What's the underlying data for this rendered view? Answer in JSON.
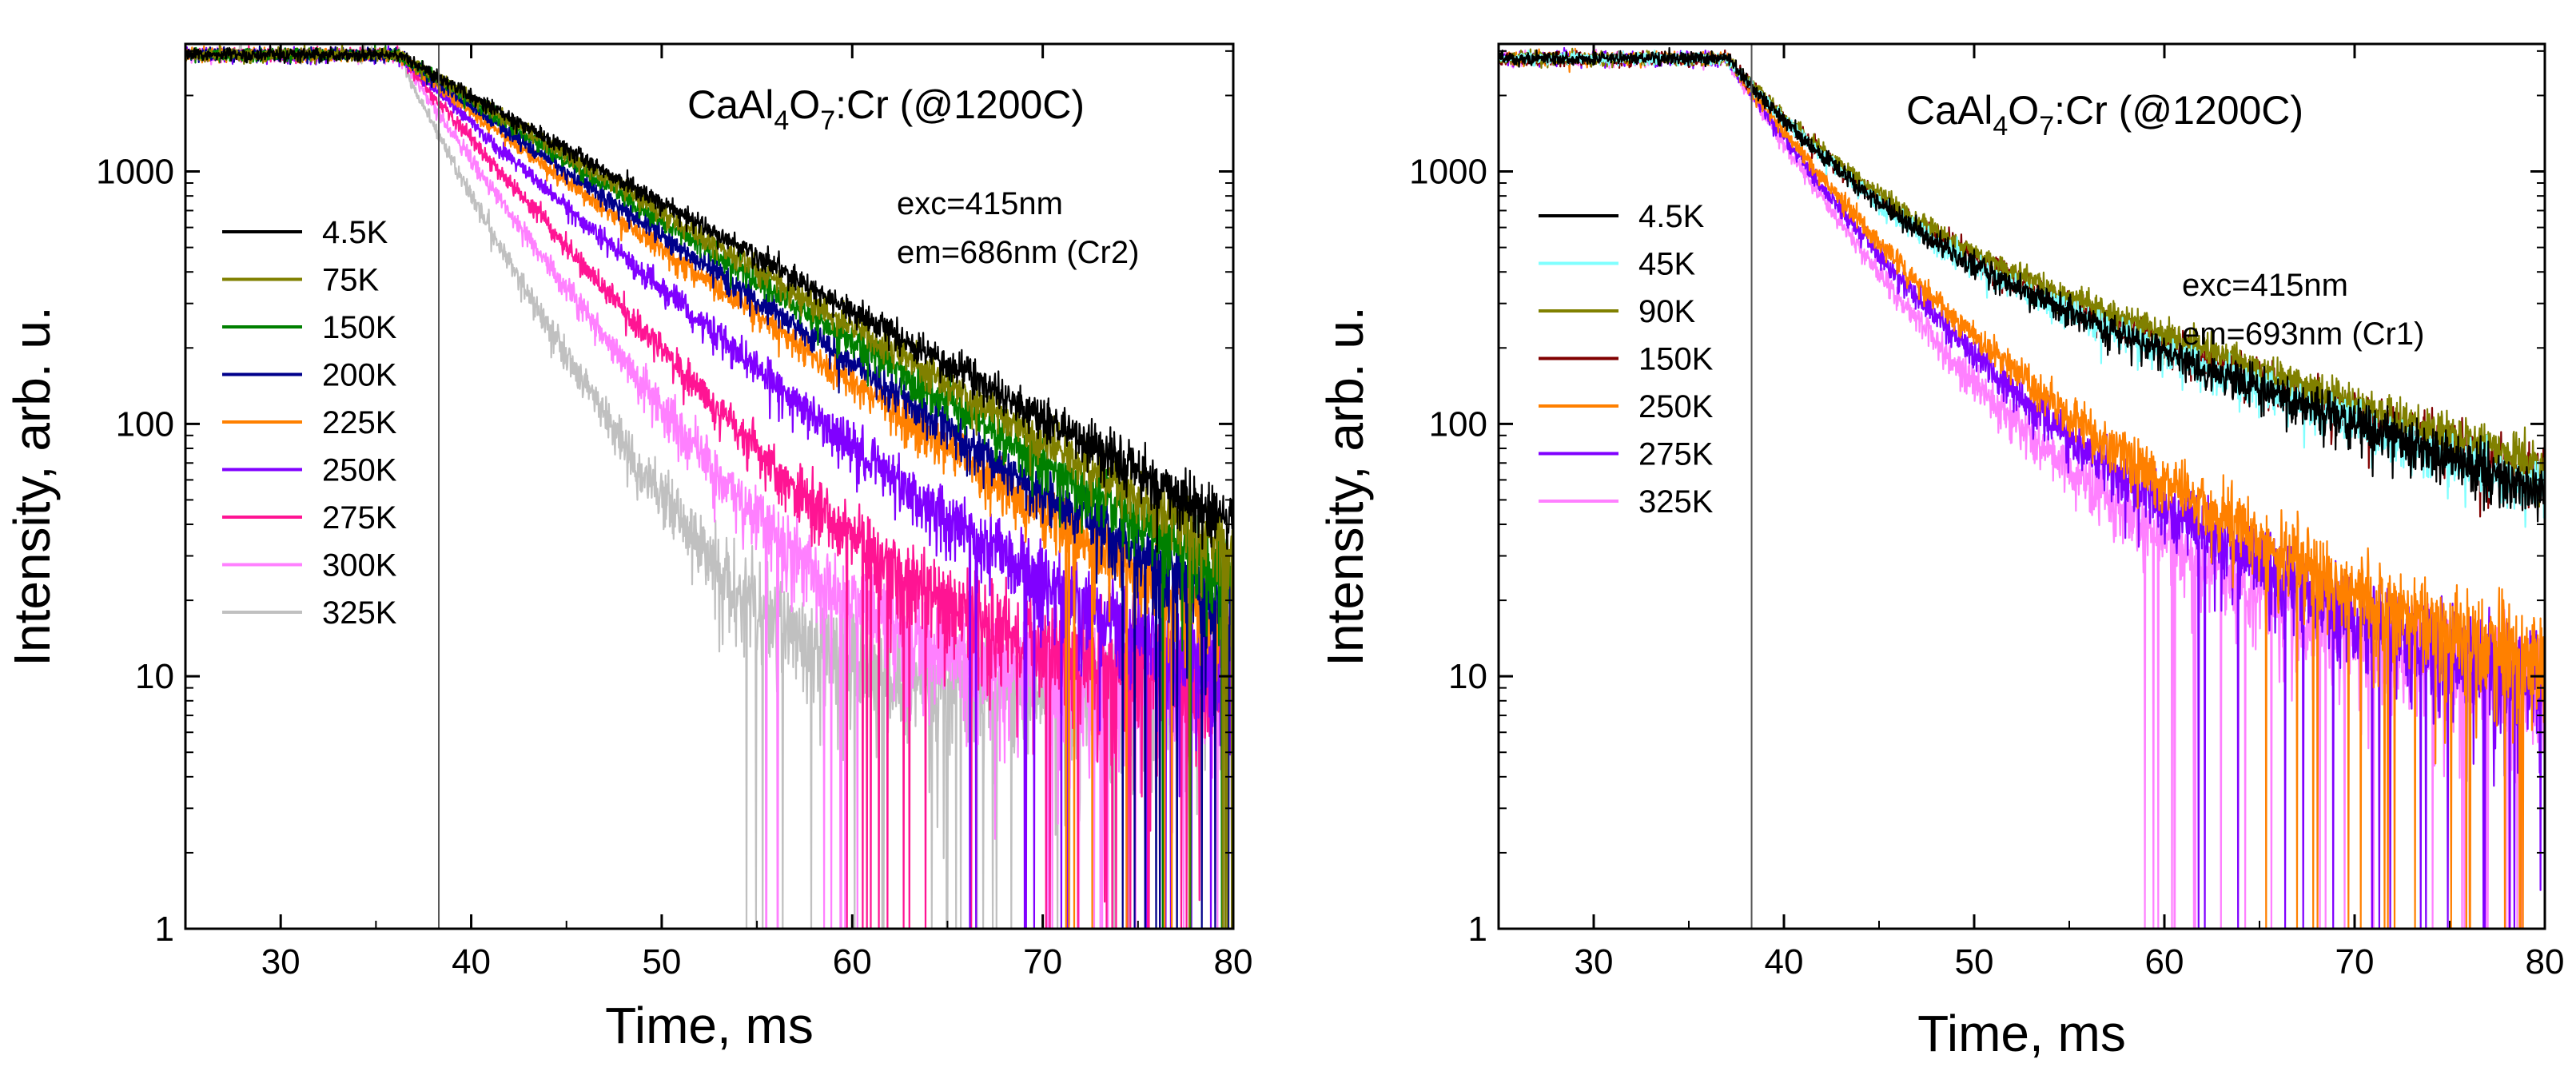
{
  "chart_data": [
    {
      "type": "line",
      "title": "CaAl4O7:Cr (@1200C)",
      "title_parts": {
        "base": "CaAl",
        "sub1": "4",
        "mid": "O",
        "sub2": "7",
        "rest": ":Cr (@1200C)"
      },
      "xlabel": "Time, ms",
      "ylabel": "Intensity, arb. u.",
      "xlim": [
        25,
        80
      ],
      "ylim": [
        1,
        3200
      ],
      "yscale": "log",
      "xticks": [
        30,
        40,
        50,
        60,
        70,
        80
      ],
      "yticks": [
        1,
        10,
        100,
        1000
      ],
      "marker_line_x": 38.3,
      "legend_position": "upper-left",
      "annotations": [
        "exc=415nm",
        "em=686nm (Cr2)"
      ],
      "series": [
        {
          "name": "4.5K",
          "color": "#000000",
          "plateau": 2900,
          "x0": 36.2,
          "tau": 10.2,
          "fast": 0.0,
          "tauf": 3.0,
          "floor": 0
        },
        {
          "name": "75K",
          "color": "#808000",
          "plateau": 2900,
          "x0": 36.2,
          "tau": 9.6,
          "fast": 0.0,
          "tauf": 3.0,
          "floor": 0
        },
        {
          "name": "150K",
          "color": "#008000",
          "plateau": 2900,
          "x0": 36.2,
          "tau": 9.1,
          "fast": 0.0,
          "tauf": 3.0,
          "floor": 0
        },
        {
          "name": "200K",
          "color": "#00008b",
          "plateau": 2900,
          "x0": 36.2,
          "tau": 8.6,
          "fast": 0.05,
          "tauf": 3.0,
          "floor": 0
        },
        {
          "name": "225K",
          "color": "#ff8000",
          "plateau": 2900,
          "x0": 36.2,
          "tau": 8.2,
          "fast": 0.1,
          "tauf": 3.0,
          "floor": 3
        },
        {
          "name": "250K",
          "color": "#8000ff",
          "plateau": 2900,
          "x0": 36.2,
          "tau": 6.7,
          "fast": 0.1,
          "tauf": 3.0,
          "floor": 7
        },
        {
          "name": "275K",
          "color": "#ff1493",
          "plateau": 2900,
          "x0": 36.2,
          "tau": 5.2,
          "fast": 0.1,
          "tauf": 3.0,
          "floor": 9
        },
        {
          "name": "300K",
          "color": "#ff80ff",
          "plateau": 2900,
          "x0": 36.2,
          "tau": 4.4,
          "fast": 0.15,
          "tauf": 2.0,
          "floor": 9
        },
        {
          "name": "325K",
          "color": "#c0c0c0",
          "plateau": 2900,
          "x0": 36.2,
          "tau": 3.5,
          "fast": 0.25,
          "tauf": 1.5,
          "floor": 9
        }
      ]
    },
    {
      "type": "line",
      "title": "CaAl4O7:Cr (@1200C)",
      "title_parts": {
        "base": "CaAl",
        "sub1": "4",
        "mid": "O",
        "sub2": "7",
        "rest": ":Cr (@1200C)"
      },
      "xlabel": "Time, ms",
      "ylabel": "Intensity, arb. u.",
      "xlim": [
        25,
        80
      ],
      "ylim": [
        1,
        3200
      ],
      "yscale": "log",
      "xticks": [
        30,
        40,
        50,
        60,
        70,
        80
      ],
      "yticks": [
        1,
        10,
        100,
        1000
      ],
      "marker_line_x": 38.3,
      "legend_position": "upper-left",
      "annotations": [
        "exc=415nm",
        "em=693nm (Cr1)"
      ],
      "series": [
        {
          "name": "4.5K",
          "color": "#000000",
          "plateau": 2800,
          "x0": 37.0,
          "tau": 16.0,
          "fast": 0.72,
          "tauf": 4.0,
          "floor": 0
        },
        {
          "name": "45K",
          "color": "#80ffff",
          "plateau": 2800,
          "x0": 37.0,
          "tau": 16.0,
          "fast": 0.72,
          "tauf": 4.0,
          "floor": 0
        },
        {
          "name": "90K",
          "color": "#808000",
          "plateau": 2800,
          "x0": 37.0,
          "tau": 17.0,
          "fast": 0.7,
          "tauf": 4.2,
          "floor": 0
        },
        {
          "name": "150K",
          "color": "#800000",
          "plateau": 2800,
          "x0": 37.0,
          "tau": 16.5,
          "fast": 0.71,
          "tauf": 4.1,
          "floor": 0
        },
        {
          "name": "250K",
          "color": "#ff8000",
          "plateau": 2800,
          "x0": 37.0,
          "tau": 9.0,
          "fast": 0.78,
          "tauf": 3.8,
          "floor": 6
        },
        {
          "name": "275K",
          "color": "#8000ff",
          "plateau": 2800,
          "x0": 37.0,
          "tau": 8.5,
          "fast": 0.8,
          "tauf": 3.6,
          "floor": 6
        },
        {
          "name": "325K",
          "color": "#ff80ff",
          "plateau": 2800,
          "x0": 37.0,
          "tau": 8.0,
          "fast": 0.84,
          "tauf": 3.4,
          "floor": 7
        }
      ]
    }
  ]
}
